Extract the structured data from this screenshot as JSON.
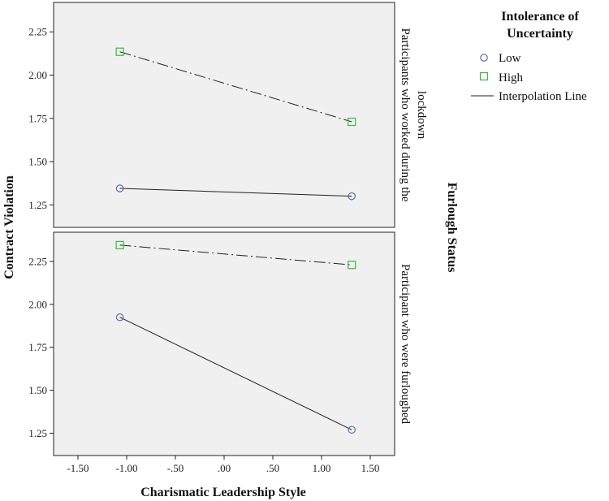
{
  "chart_data": {
    "type": "line",
    "title": "",
    "xlabel": "Charismatic Leadership Style",
    "ylabel": "Contract Violation",
    "xlim": [
      -1.75,
      1.75
    ],
    "x_ticks": [
      -1.5,
      -1.0,
      -0.5,
      0.0,
      0.5,
      1.0,
      1.5
    ],
    "x_tick_labels": [
      "-1.50",
      "-1.00",
      "-.50",
      ".00",
      ".50",
      "1.00",
      "1.50"
    ],
    "ylim": [
      1.12,
      2.42
    ],
    "y_ticks": [
      1.25,
      1.5,
      1.75,
      2.0,
      2.25
    ],
    "y_tick_labels": [
      "1.25",
      "1.50",
      "1.75",
      "2.00",
      "2.25"
    ],
    "facet_title": "Furlough Status",
    "legend": {
      "title": "Intolerance of Uncertainty",
      "title_lines": [
        "Intolerance of",
        "Uncertainty"
      ],
      "entries": [
        "Low",
        "High",
        "Interpolation Line"
      ]
    },
    "panels": [
      {
        "label": "Participants who worked during the lockdown",
        "label_lines": [
          "Participants who worked during the",
          "lockdown"
        ],
        "series": [
          {
            "name": "Low",
            "x": [
              -1.07,
              1.31
            ],
            "y": [
              1.345,
              1.3
            ]
          },
          {
            "name": "High",
            "x": [
              -1.07,
              1.31
            ],
            "y": [
              2.135,
              1.73
            ]
          }
        ]
      },
      {
        "label": "Participant who were furloughed",
        "label_lines": [
          "Participant who were furloughed"
        ],
        "series": [
          {
            "name": "Low",
            "x": [
              -1.07,
              1.31
            ],
            "y": [
              1.925,
              1.27
            ]
          },
          {
            "name": "High",
            "x": [
              -1.07,
              1.31
            ],
            "y": [
              2.345,
              2.23
            ]
          }
        ]
      }
    ]
  },
  "colors": {
    "panel_bg": "#f0f0f0",
    "low_marker": "#5b6bab",
    "high_marker": "#3cb83c",
    "line": "#222222"
  }
}
